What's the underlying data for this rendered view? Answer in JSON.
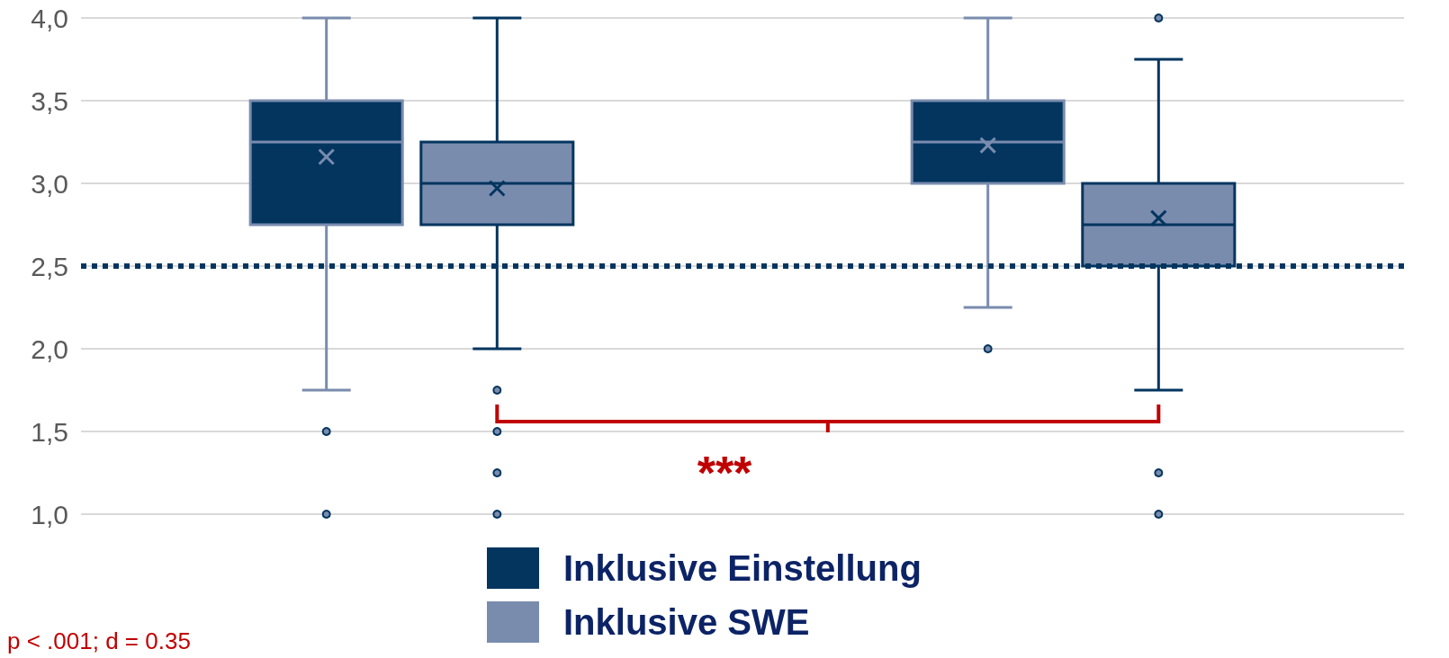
{
  "chart_data": {
    "type": "box",
    "categories": [
      null,
      null
    ],
    "series": [
      {
        "name": "Inklusive Einstellung",
        "color": "#03355f",
        "boxes": [
          {
            "low": 1.75,
            "q1": 2.75,
            "median": 3.25,
            "q3": 3.5,
            "high": 4.0,
            "mean": 3.16,
            "outliers": [
              1.5,
              1.0
            ]
          },
          {
            "low": 2.25,
            "q1": 3.0,
            "median": 3.25,
            "q3": 3.5,
            "high": 4.0,
            "mean": 3.23,
            "outliers": [
              2.0
            ]
          }
        ]
      },
      {
        "name": "Inklusive SWE",
        "color": "#7a8cae",
        "boxes": [
          {
            "low": 2.0,
            "q1": 2.75,
            "median": 3.0,
            "q3": 3.25,
            "high": 4.0,
            "mean": 2.97,
            "outliers": [
              1.75,
              1.5,
              1.25,
              1.0
            ]
          },
          {
            "low": 1.75,
            "q1": 2.5,
            "median": 2.75,
            "q3": 3.0,
            "high": 3.75,
            "mean": 2.79,
            "outliers": [
              4.0,
              1.25,
              1.0
            ]
          }
        ]
      }
    ],
    "ylim": [
      1.0,
      4.0
    ],
    "yticks": [
      {
        "value": 1.0,
        "label": "1,0"
      },
      {
        "value": 1.5,
        "label": "1,5"
      },
      {
        "value": 2.0,
        "label": "2,0"
      },
      {
        "value": 2.5,
        "label": "2,5"
      },
      {
        "value": 3.0,
        "label": "3,0"
      },
      {
        "value": 3.5,
        "label": "3,5"
      },
      {
        "value": 4.0,
        "label": "4,0"
      }
    ],
    "ref_lines": [
      {
        "axis": "y",
        "value": 2.5,
        "color": "#03355f",
        "line_style": "dotted"
      }
    ],
    "annotations": [
      "***",
      "p < .001; d = 0.35"
    ],
    "grid": "y",
    "legend": "bottom"
  }
}
